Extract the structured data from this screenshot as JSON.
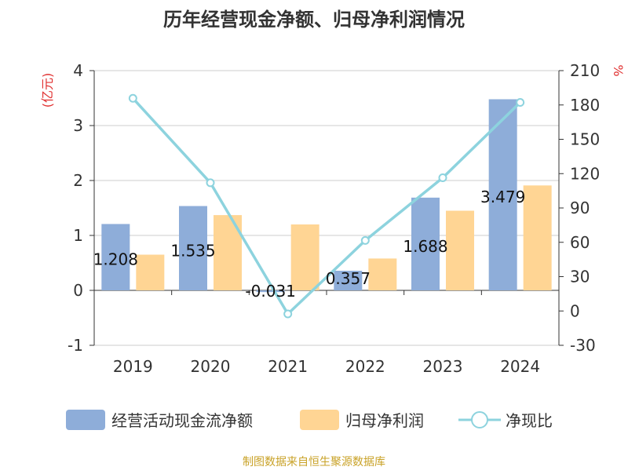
{
  "title": "历年经营现金净额、归母净利润情况",
  "source": "制图数据来自恒生聚源数据库",
  "chart_data": {
    "type": "bar",
    "categories": [
      "2019",
      "2020",
      "2021",
      "2022",
      "2023",
      "2024"
    ],
    "series": [
      {
        "name": "经营活动现金流净额",
        "type": "bar",
        "axis": "left",
        "color": "#8eadd9",
        "values": [
          1.208,
          1.535,
          -0.031,
          0.357,
          1.688,
          3.479
        ],
        "labels": [
          "1.208",
          "1.535",
          "-0.031",
          "0.357",
          "1.688",
          "3.479"
        ]
      },
      {
        "name": "归母净利润",
        "type": "bar",
        "axis": "left",
        "color": "#ffd594",
        "values": [
          0.65,
          1.37,
          1.2,
          0.58,
          1.45,
          1.91
        ]
      },
      {
        "name": "净现比",
        "type": "line",
        "axis": "right",
        "color": "#8dd3de",
        "values": [
          185.8,
          112.0,
          -2.6,
          61.6,
          116.4,
          182.2
        ]
      }
    ],
    "y_left": {
      "label": "(亿元)",
      "ylim": [
        -1,
        4
      ],
      "ticks": [
        "-1",
        "0",
        "1",
        "2",
        "3",
        "4"
      ]
    },
    "y_right": {
      "label": "%",
      "ylim": [
        -30,
        210
      ],
      "ticks": [
        "-30",
        "0",
        "30",
        "60",
        "90",
        "120",
        "150",
        "180",
        "210"
      ]
    },
    "grid": true,
    "legend_position": "bottom"
  }
}
